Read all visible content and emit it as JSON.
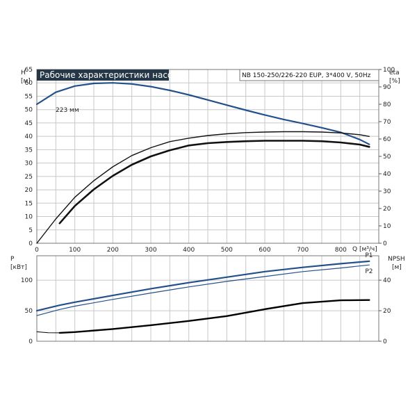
{
  "header": {
    "title": "Рабочие характеристики насоса",
    "model": "NB 150-250/226-220 EUP, 3*400 V, 50Hz",
    "title_bg": "#253746"
  },
  "chart_data": [
    {
      "type": "line",
      "title": "Рабочие характеристики насоса",
      "x_unit": "Q [м³/ч]",
      "xlim": [
        0,
        900
      ],
      "x_ticks": [
        "0",
        "100",
        "200",
        "300",
        "400",
        "500",
        "600",
        "700",
        "800"
      ],
      "left_axis": {
        "label": "H",
        "unit": "[м]",
        "ylim": [
          0,
          65
        ],
        "ticks": [
          "0",
          "5",
          "10",
          "15",
          "20",
          "25",
          "30",
          "35",
          "40",
          "45",
          "50",
          "55",
          "60",
          "65"
        ]
      },
      "right_axis": {
        "label": "eta",
        "unit": "[%]",
        "ylim": [
          0,
          100
        ],
        "ticks": [
          "0",
          "10",
          "20",
          "30",
          "40",
          "50",
          "60",
          "70",
          "80",
          "90",
          "100"
        ]
      },
      "grid": true,
      "annotations": [
        "223 мм"
      ],
      "series": [
        {
          "axis": "left",
          "color": "#23508a",
          "stroke": 2.2,
          "x": [
            0,
            50,
            100,
            150,
            200,
            250,
            300,
            350,
            400,
            450,
            500,
            550,
            600,
            650,
            700,
            750,
            800,
            850,
            875
          ],
          "y": [
            52,
            56.5,
            58.8,
            59.8,
            60,
            59.6,
            58.6,
            57.2,
            55.5,
            53.6,
            51.7,
            49.8,
            48,
            46.3,
            44.8,
            43.2,
            41.5,
            38.8,
            37
          ]
        },
        {
          "axis": "right",
          "color": "#111111",
          "stroke": 1.4,
          "x": [
            0,
            50,
            100,
            150,
            200,
            250,
            300,
            350,
            400,
            450,
            500,
            550,
            600,
            650,
            700,
            750,
            800,
            850,
            875
          ],
          "y": [
            0,
            14,
            26.5,
            36,
            44,
            50.5,
            55,
            58.5,
            60.5,
            62,
            63,
            63.7,
            64,
            64.2,
            64.2,
            64,
            63.5,
            62.5,
            61.5
          ]
        },
        {
          "axis": "right",
          "color": "#111111",
          "stroke": 2.6,
          "x": [
            60,
            100,
            150,
            200,
            250,
            300,
            350,
            400,
            450,
            500,
            550,
            600,
            650,
            700,
            750,
            800,
            850,
            875
          ],
          "y": [
            11.5,
            21.5,
            31,
            38.8,
            45.2,
            50,
            53.5,
            56.3,
            57.6,
            58.3,
            58.7,
            59,
            59,
            59,
            58.7,
            58,
            56.8,
            55.5
          ]
        }
      ]
    },
    {
      "type": "line",
      "x_unit": "Q [м³/ч]",
      "xlim": [
        0,
        900
      ],
      "left_axis": {
        "label": "P",
        "unit": "[кВт]",
        "ylim": [
          0,
          140
        ],
        "ticks": [
          "0",
          "50",
          "100"
        ]
      },
      "right_axis": {
        "label": "NPSH",
        "unit": "[м]",
        "ylim": [
          0,
          56
        ],
        "ticks": [
          "0",
          "20",
          "40"
        ]
      },
      "grid": true,
      "series": [
        {
          "name": "P1",
          "axis": "left",
          "color": "#23508a",
          "stroke": 2.2,
          "x": [
            0,
            60,
            100,
            200,
            300,
            400,
            500,
            600,
            700,
            800,
            875
          ],
          "y": [
            50,
            59,
            64,
            75,
            86,
            96,
            105,
            114,
            121,
            127,
            131
          ]
        },
        {
          "name": "P2",
          "axis": "left",
          "color": "#23508a",
          "stroke": 1.2,
          "x": [
            0,
            60,
            100,
            200,
            300,
            400,
            500,
            600,
            700,
            800,
            875
          ],
          "y": [
            42,
            52,
            57.5,
            68.5,
            79,
            89,
            98,
            106,
            114,
            120,
            125
          ]
        },
        {
          "axis": "right",
          "color": "#000000",
          "stroke": 2.4,
          "x": [
            60,
            100,
            200,
            300,
            400,
            500,
            600,
            700,
            800,
            875
          ],
          "y": [
            5.5,
            6,
            8,
            10.5,
            13.3,
            16.5,
            21,
            25,
            26.8,
            27
          ]
        },
        {
          "axis": "right",
          "color": "#000000",
          "stroke": 1.0,
          "x": [
            0,
            30,
            60
          ],
          "y": [
            6.2,
            5.6,
            5.5
          ]
        }
      ]
    }
  ]
}
